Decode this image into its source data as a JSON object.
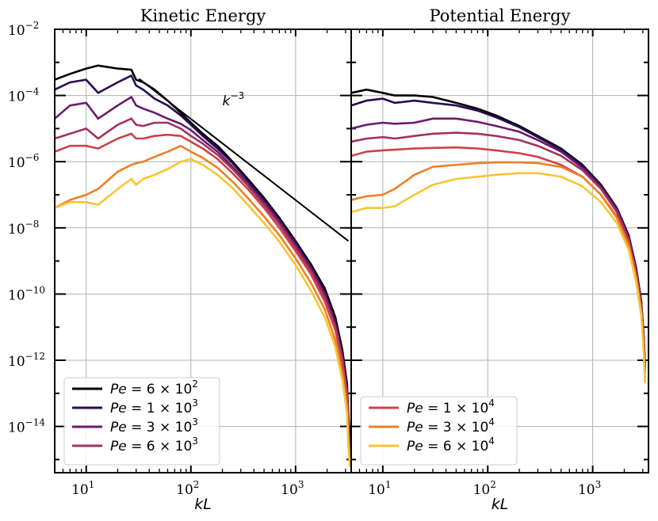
{
  "chart_data": [
    {
      "type": "line",
      "title": "Kinetic Energy",
      "xlabel": "kL",
      "ylabel": "",
      "xscale": "log",
      "yscale": "log",
      "xlim": [
        5,
        3400
      ],
      "ylim": [
        4e-16,
        0.01
      ],
      "grid": true,
      "x_tick_labels": [
        "10",
        "10",
        "10"
      ],
      "x_tick_exponents": [
        "1",
        "2",
        "3"
      ],
      "y_tick_labels": [
        "10",
        "10",
        "10",
        "10",
        "10",
        "10",
        "10"
      ],
      "y_tick_exponents": [
        "−2",
        "−4",
        "−6",
        "−8",
        "−10",
        "−12",
        "−14"
      ],
      "annotation": {
        "text": "k",
        "exponent": "−3",
        "line": {
          "x": [
            32,
            3200
          ],
          "y": [
            0.00032,
            4e-09
          ]
        },
        "label_at": {
          "x": 200,
          "y": 5e-05
        }
      },
      "legend_position": "lower-left",
      "series": [
        {
          "name": "Pe = 6 × 10",
          "exp": "2",
          "color": "#000004",
          "x": [
            5,
            7,
            10,
            13,
            20,
            27,
            30,
            35,
            45,
            60,
            80,
            100,
            130,
            180,
            250,
            350,
            500,
            700,
            1000,
            1400,
            1900,
            2400,
            2800,
            3100,
            3200,
            3300
          ],
          "y": [
            0.0003,
            0.00045,
            0.00065,
            0.0008,
            0.00065,
            0.0006,
            0.0003,
            0.00025,
            0.00015,
            7e-05,
            3e-05,
            1.5e-05,
            7e-06,
            3e-06,
            1e-06,
            3e-07,
            8e-08,
            2e-08,
            4e-09,
            8e-10,
            1.5e-10,
            2e-11,
            2e-12,
            2e-13,
            2e-14,
            5e-15
          ]
        },
        {
          "name": "Pe = 1 × 10",
          "exp": "3",
          "color": "#2a0b4f",
          "x": [
            5,
            7,
            10,
            13,
            20,
            27,
            30,
            35,
            45,
            60,
            80,
            100,
            130,
            180,
            250,
            350,
            500,
            700,
            1000,
            1400,
            1900,
            2400,
            2800,
            3100,
            3200,
            3300
          ],
          "y": [
            0.00015,
            0.00025,
            0.0003,
            0.00012,
            0.00025,
            0.0004,
            0.0002,
            0.00015,
            8e-05,
            5e-05,
            2.5e-05,
            1.3e-05,
            6e-06,
            2.5e-06,
            9e-07,
            2.7e-07,
            7e-08,
            1.8e-08,
            3.5e-09,
            7e-10,
            1.2e-10,
            1.5e-11,
            1.5e-12,
            1.5e-13,
            1.5e-14,
            3e-15
          ]
        },
        {
          "name": "Pe = 3 × 10",
          "exp": "3",
          "color": "#6a1a6e",
          "x": [
            5,
            7,
            10,
            13,
            20,
            27,
            30,
            35,
            45,
            60,
            80,
            100,
            130,
            180,
            250,
            350,
            500,
            700,
            1000,
            1400,
            1900,
            2400,
            2800,
            3100,
            3200,
            3300
          ],
          "y": [
            2e-05,
            5e-05,
            6e-05,
            2e-05,
            5e-05,
            9e-05,
            5e-05,
            4e-05,
            3e-05,
            2e-05,
            1.4e-05,
            9e-06,
            4.5e-06,
            2e-06,
            7e-07,
            2.2e-07,
            6e-08,
            1.5e-08,
            3e-09,
            6e-10,
            1e-10,
            1.2e-11,
            1.2e-12,
            1.2e-13,
            1.2e-14,
            2e-15
          ]
        },
        {
          "name": "Pe = 6 × 10",
          "exp": "3",
          "color": "#a3315f",
          "x": [
            5,
            7,
            10,
            13,
            20,
            27,
            30,
            35,
            45,
            60,
            80,
            100,
            130,
            180,
            250,
            350,
            500,
            700,
            1000,
            1400,
            1900,
            2400,
            2800,
            3100,
            3200,
            3300
          ],
          "y": [
            5e-06,
            7e-06,
            1e-05,
            5e-06,
            1.3e-05,
            2e-05,
            1.3e-05,
            1.2e-05,
            1.5e-05,
            1.5e-05,
            1e-05,
            6e-06,
            3.5e-06,
            1.6e-06,
            6e-07,
            1.9e-07,
            5e-08,
            1.3e-08,
            2.5e-09,
            5e-10,
            8e-11,
            1e-11,
            1e-12,
            1e-13,
            1e-14,
            1e-15
          ]
        },
        {
          "name": "Pe = 1 × 10",
          "exp": "4",
          "color": "#cc4248",
          "x": [
            5,
            7,
            10,
            13,
            20,
            27,
            30,
            35,
            45,
            60,
            80,
            100,
            130,
            180,
            250,
            350,
            500,
            700,
            1000,
            1400,
            1900,
            2400,
            2800,
            3100,
            3200,
            3300
          ],
          "y": [
            2e-06,
            3e-06,
            3e-06,
            2.5e-06,
            5e-06,
            7e-06,
            5e-06,
            5e-06,
            6e-06,
            6.5e-06,
            6e-06,
            4e-06,
            2.5e-06,
            1.2e-06,
            4.5e-07,
            1.5e-07,
            4e-08,
            1e-08,
            2e-09,
            4e-10,
            6e-11,
            8e-12,
            8e-13,
            8e-14,
            8e-15,
            1e-15
          ]
        },
        {
          "name": "Pe = 3 × 10",
          "exp": "4",
          "color": "#f07f25",
          "x": [
            5,
            7,
            10,
            13,
            20,
            27,
            30,
            35,
            45,
            60,
            80,
            100,
            130,
            180,
            250,
            350,
            500,
            700,
            1000,
            1400,
            1900,
            2400,
            2800,
            3100,
            3200,
            3300
          ],
          "y": [
            4e-08,
            7e-08,
            1e-07,
            1.5e-07,
            5e-07,
            8e-07,
            9e-07,
            1e-06,
            1.4e-06,
            2e-06,
            3e-06,
            2e-06,
            1.3e-06,
            6.5e-07,
            2.5e-07,
            8e-08,
            2.2e-08,
            6e-09,
            1.2e-09,
            2.2e-10,
            3.5e-11,
            4e-12,
            4e-13,
            4e-14,
            4e-15,
            8e-16
          ]
        },
        {
          "name": "Pe = 6 × 10",
          "exp": "4",
          "color": "#f7c530",
          "x": [
            5,
            7,
            10,
            13,
            20,
            27,
            30,
            35,
            45,
            60,
            80,
            100,
            130,
            180,
            250,
            350,
            500,
            700,
            1000,
            1400,
            1900,
            2400,
            2800,
            3100,
            3200,
            3300
          ],
          "y": [
            4e-08,
            6e-08,
            6e-08,
            5e-08,
            1.5e-07,
            3e-07,
            2e-07,
            3e-07,
            4e-07,
            6e-07,
            1e-06,
            1.2e-06,
            8e-07,
            4e-07,
            1.6e-07,
            5e-08,
            1.4e-08,
            3.8e-09,
            7.5e-10,
            1.3e-10,
            2e-11,
            2.5e-12,
            2.5e-13,
            2.5e-14,
            2.5e-15,
            6e-16
          ]
        }
      ]
    },
    {
      "type": "line",
      "title": "Potential Energy",
      "xlabel": "kL",
      "ylabel": "",
      "xscale": "log",
      "yscale": "log",
      "xlim": [
        5,
        3400
      ],
      "ylim": [
        4e-16,
        0.01
      ],
      "grid": true,
      "x_tick_labels": [
        "10",
        "10",
        "10"
      ],
      "x_tick_exponents": [
        "1",
        "2",
        "3"
      ],
      "legend_position": "lower-left",
      "series": [
        {
          "name": "Pe = 6 × 10",
          "exp": "2",
          "color": "#000004",
          "x": [
            5,
            7,
            10,
            13,
            20,
            30,
            50,
            80,
            120,
            200,
            300,
            500,
            800,
            1200,
            1700,
            2200,
            2600,
            2900,
            3050,
            3150
          ],
          "y": [
            0.00012,
            0.00015,
            0.00012,
            0.0001,
            0.0001,
            9e-05,
            6e-05,
            4e-05,
            2.5e-05,
            1.2e-05,
            6e-06,
            2.5e-06,
            8e-07,
            2e-07,
            4e-08,
            6e-09,
            6e-10,
            6e-11,
            6e-12,
            8e-13
          ]
        },
        {
          "name": "Pe = 1 × 10",
          "exp": "3",
          "color": "#2a0b4f",
          "x": [
            5,
            7,
            10,
            13,
            20,
            30,
            50,
            80,
            120,
            200,
            300,
            500,
            800,
            1200,
            1700,
            2200,
            2600,
            2900,
            3050,
            3150
          ],
          "y": [
            5e-05,
            7e-05,
            8e-05,
            6e-05,
            7e-05,
            6e-05,
            5e-05,
            3.5e-05,
            2.2e-05,
            1.1e-05,
            5.5e-06,
            2.3e-06,
            7.5e-07,
            1.9e-07,
            3.8e-08,
            5.5e-09,
            5.5e-10,
            5.5e-11,
            5.5e-12,
            7e-13
          ]
        },
        {
          "name": "Pe = 3 × 10",
          "exp": "3",
          "color": "#6a1a6e",
          "x": [
            5,
            7,
            10,
            13,
            20,
            30,
            50,
            80,
            120,
            200,
            300,
            500,
            800,
            1200,
            1700,
            2200,
            2600,
            2900,
            3050,
            3150
          ],
          "y": [
            1e-05,
            1.3e-05,
            1.5e-05,
            1.4e-05,
            1.5e-05,
            2e-05,
            2e-05,
            1.6e-05,
            1.2e-05,
            8e-06,
            4.5e-06,
            2e-06,
            6.5e-07,
            1.7e-07,
            3.5e-08,
            5e-09,
            5e-10,
            5e-11,
            5e-12,
            6e-13
          ]
        },
        {
          "name": "Pe = 6 × 10",
          "exp": "3",
          "color": "#a3315f",
          "x": [
            5,
            7,
            10,
            13,
            20,
            30,
            50,
            80,
            120,
            200,
            300,
            500,
            800,
            1200,
            1700,
            2200,
            2600,
            2900,
            3050,
            3150
          ],
          "y": [
            4e-06,
            5e-06,
            5.5e-06,
            5e-06,
            6e-06,
            7e-06,
            7.5e-06,
            7e-06,
            6e-06,
            4.5e-06,
            3e-06,
            1.5e-06,
            5.5e-07,
            1.5e-07,
            3e-08,
            4.5e-09,
            4.5e-10,
            4.5e-11,
            4.5e-12,
            5e-13
          ]
        },
        {
          "name": "Pe = 1 × 10",
          "exp": "4",
          "color": "#cc4248",
          "x": [
            5,
            7,
            10,
            13,
            20,
            30,
            50,
            80,
            120,
            200,
            300,
            500,
            800,
            1200,
            1700,
            2200,
            2600,
            2900,
            3050,
            3150
          ],
          "y": [
            1.5e-06,
            2e-06,
            2.2e-06,
            2.3e-06,
            2.5e-06,
            2.6e-06,
            2.7e-06,
            2.5e-06,
            2.2e-06,
            1.8e-06,
            1.4e-06,
            8e-07,
            3.5e-07,
            1e-07,
            2.2e-08,
            3.5e-09,
            3.5e-10,
            3.5e-11,
            3.5e-12,
            4e-13
          ]
        },
        {
          "name": "Pe = 3 × 10",
          "exp": "4",
          "color": "#f07f25",
          "x": [
            5,
            7,
            10,
            13,
            20,
            30,
            50,
            80,
            120,
            200,
            300,
            500,
            800,
            1200,
            1700,
            2200,
            2600,
            2900,
            3050,
            3150
          ],
          "y": [
            7e-08,
            9e-08,
            1e-07,
            1.5e-07,
            4e-07,
            7e-07,
            8e-07,
            9e-07,
            9.5e-07,
            9.5e-07,
            9e-07,
            7e-07,
            3.5e-07,
            1e-07,
            2e-08,
            3e-09,
            3e-10,
            3e-11,
            3e-12,
            3e-13
          ]
        },
        {
          "name": "Pe = 6 × 10",
          "exp": "4",
          "color": "#f7c530",
          "x": [
            5,
            7,
            10,
            13,
            20,
            30,
            50,
            80,
            120,
            200,
            300,
            500,
            800,
            1200,
            1700,
            2200,
            2600,
            2900,
            3050,
            3150
          ],
          "y": [
            3e-08,
            4e-08,
            4e-08,
            4.5e-08,
            1e-07,
            2e-07,
            3e-07,
            3.5e-07,
            4e-07,
            4.5e-07,
            4.5e-07,
            3.5e-07,
            1.8e-07,
            6e-08,
            1.4e-08,
            2.2e-09,
            2.2e-10,
            2.2e-11,
            2.2e-12,
            2e-13
          ]
        }
      ]
    }
  ]
}
